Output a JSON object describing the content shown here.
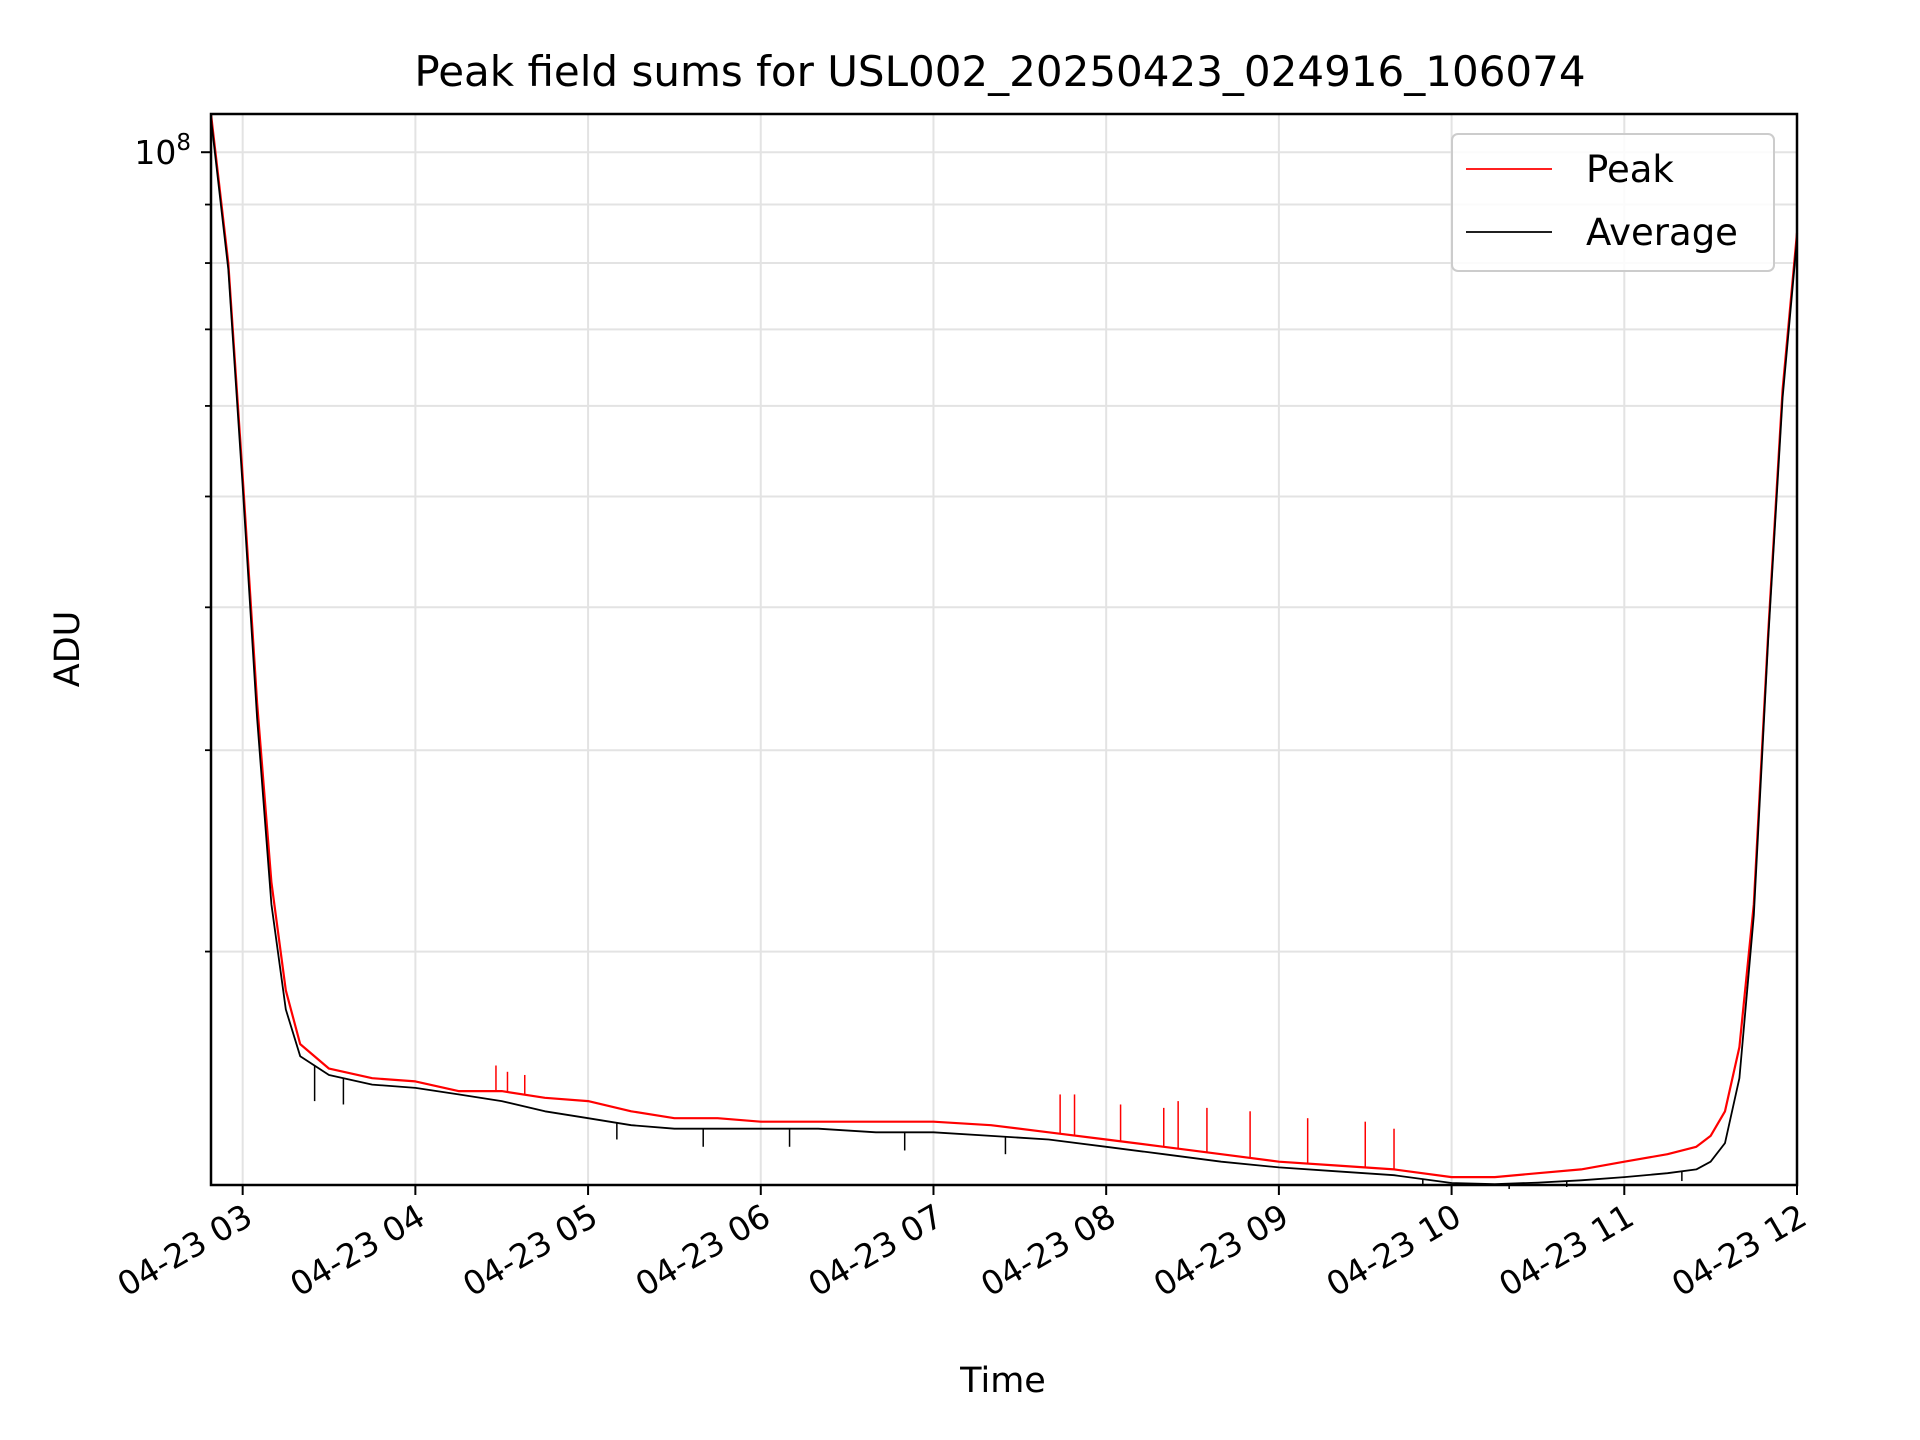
{
  "chart_data": {
    "type": "line",
    "title": "Peak field sums for USL002_20250423_024916_106074",
    "xlabel": "Time",
    "ylabel": "ADU",
    "x_unit": "time of day (HH:MM), 2025-04-23",
    "xlim": [
      "02:49",
      "12:00"
    ],
    "y_scale": "log",
    "ylim": [
      12500000,
      108000000
    ],
    "x_ticks": [
      {
        "x": "03:00",
        "label": "04-23 03"
      },
      {
        "x": "04:00",
        "label": "04-23 04"
      },
      {
        "x": "05:00",
        "label": "04-23 05"
      },
      {
        "x": "06:00",
        "label": "04-23 06"
      },
      {
        "x": "07:00",
        "label": "04-23 07"
      },
      {
        "x": "08:00",
        "label": "04-23 08"
      },
      {
        "x": "09:00",
        "label": "04-23 09"
      },
      {
        "x": "10:00",
        "label": "04-23 10"
      },
      {
        "x": "11:00",
        "label": "04-23 11"
      },
      {
        "x": "12:00",
        "label": "04-23 12"
      }
    ],
    "y_major_ticks": [
      {
        "value": 100000000,
        "base": "10",
        "exp": "8"
      }
    ],
    "y_minor_ticks": [
      20000000,
      30000000,
      40000000,
      50000000,
      60000000,
      70000000,
      80000000,
      90000000
    ],
    "grid": true,
    "legend_position": "top-right",
    "series": [
      {
        "name": "Peak",
        "color": "#ff0000",
        "x": [
          "02:49",
          "02:55",
          "03:00",
          "03:05",
          "03:10",
          "03:15",
          "03:20",
          "03:30",
          "03:45",
          "04:00",
          "04:15",
          "04:30",
          "04:45",
          "05:00",
          "05:15",
          "05:30",
          "05:45",
          "06:00",
          "06:20",
          "06:40",
          "07:00",
          "07:20",
          "07:40",
          "08:00",
          "08:20",
          "08:40",
          "09:00",
          "09:20",
          "09:40",
          "10:00",
          "10:15",
          "10:30",
          "10:45",
          "11:00",
          "11:15",
          "11:25",
          "11:30",
          "11:35",
          "11:40",
          "11:45",
          "11:50",
          "11:55",
          "12:00"
        ],
        "y": [
          108000000,
          80000000,
          52000000,
          33000000,
          23000000,
          18500000,
          16600000,
          15800000,
          15500000,
          15400000,
          15100000,
          15100000,
          14900000,
          14800000,
          14500000,
          14300000,
          14300000,
          14200000,
          14200000,
          14200000,
          14200000,
          14100000,
          13900000,
          13700000,
          13500000,
          13300000,
          13100000,
          13000000,
          12900000,
          12700000,
          12700000,
          12800000,
          12900000,
          13100000,
          13300000,
          13500000,
          13800000,
          14500000,
          16500000,
          22000000,
          38000000,
          62000000,
          85000000
        ],
        "spikes": [
          {
            "x": "04:28",
            "y": 15900000
          },
          {
            "x": "04:32",
            "y": 15700000
          },
          {
            "x": "04:38",
            "y": 15600000
          },
          {
            "x": "07:44",
            "y": 15000000
          },
          {
            "x": "07:49",
            "y": 15000000
          },
          {
            "x": "08:05",
            "y": 14700000
          },
          {
            "x": "08:20",
            "y": 14600000
          },
          {
            "x": "08:25",
            "y": 14800000
          },
          {
            "x": "08:35",
            "y": 14600000
          },
          {
            "x": "08:50",
            "y": 14500000
          },
          {
            "x": "09:10",
            "y": 14300000
          },
          {
            "x": "09:30",
            "y": 14200000
          },
          {
            "x": "09:40",
            "y": 14000000
          }
        ]
      },
      {
        "name": "Average",
        "color": "#000000",
        "x": [
          "02:49",
          "02:55",
          "03:00",
          "03:05",
          "03:10",
          "03:15",
          "03:20",
          "03:30",
          "03:45",
          "04:00",
          "04:15",
          "04:30",
          "04:45",
          "05:00",
          "05:15",
          "05:30",
          "05:45",
          "06:00",
          "06:20",
          "06:40",
          "07:00",
          "07:20",
          "07:40",
          "08:00",
          "08:20",
          "08:40",
          "09:00",
          "09:20",
          "09:40",
          "10:00",
          "10:15",
          "10:30",
          "10:45",
          "11:00",
          "11:15",
          "11:25",
          "11:30",
          "11:35",
          "11:40",
          "11:45",
          "11:50",
          "11:55",
          "12:00"
        ],
        "y": [
          107000000,
          79000000,
          51000000,
          32000000,
          22000000,
          17800000,
          16200000,
          15600000,
          15300000,
          15200000,
          15000000,
          14800000,
          14500000,
          14300000,
          14100000,
          14000000,
          14000000,
          14000000,
          14000000,
          13900000,
          13900000,
          13800000,
          13700000,
          13500000,
          13300000,
          13100000,
          12950000,
          12850000,
          12750000,
          12550000,
          12520000,
          12560000,
          12620000,
          12700000,
          12800000,
          12900000,
          13100000,
          13600000,
          15500000,
          21500000,
          37500000,
          61000000,
          84000000
        ],
        "dips": [
          {
            "x": "03:25",
            "y": 14800000
          },
          {
            "x": "03:35",
            "y": 14700000
          },
          {
            "x": "05:10",
            "y": 13700000
          },
          {
            "x": "05:40",
            "y": 13500000
          },
          {
            "x": "06:10",
            "y": 13500000
          },
          {
            "x": "06:50",
            "y": 13400000
          },
          {
            "x": "07:25",
            "y": 13300000
          },
          {
            "x": "09:50",
            "y": 12500000
          },
          {
            "x": "10:20",
            "y": 12400000
          },
          {
            "x": "10:40",
            "y": 12450000
          },
          {
            "x": "11:20",
            "y": 12600000
          }
        ]
      }
    ]
  }
}
